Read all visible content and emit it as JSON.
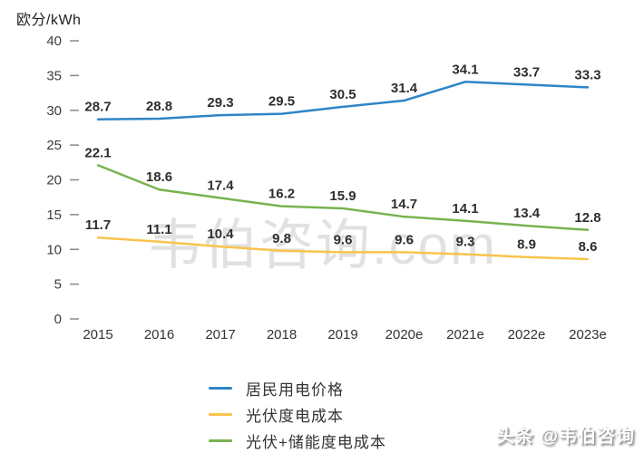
{
  "chart_data": {
    "type": "line",
    "title": "",
    "xlabel": "",
    "ylabel": "欧分/kWh",
    "ylim": [
      0,
      40
    ],
    "y_ticks": [
      40,
      35,
      30,
      25,
      20,
      15,
      10,
      5,
      0
    ],
    "grid": false,
    "legend_position": "bottom",
    "categories": [
      "2015",
      "2016",
      "2017",
      "2018",
      "2019",
      "2020e",
      "2021e",
      "2022e",
      "2023e"
    ],
    "series": [
      {
        "name": "居民用电价格",
        "color": "#2E86C5",
        "values": [
          28.7,
          28.8,
          29.3,
          29.5,
          30.5,
          31.4,
          34.1,
          33.7,
          33.3
        ]
      },
      {
        "name": "光伏度电成本",
        "color": "#F9C34D",
        "values": [
          11.7,
          11.1,
          10.4,
          9.8,
          9.6,
          9.6,
          9.3,
          8.9,
          8.6
        ]
      },
      {
        "name": "光伏+储能度电成本",
        "color": "#77B34F",
        "values": [
          22.1,
          18.6,
          17.4,
          16.2,
          15.9,
          14.7,
          14.1,
          13.4,
          12.8
        ]
      }
    ]
  },
  "watermarks": {
    "center_text": "韦伯咨询.com",
    "badge_text": "头条 @韦伯咨询"
  }
}
